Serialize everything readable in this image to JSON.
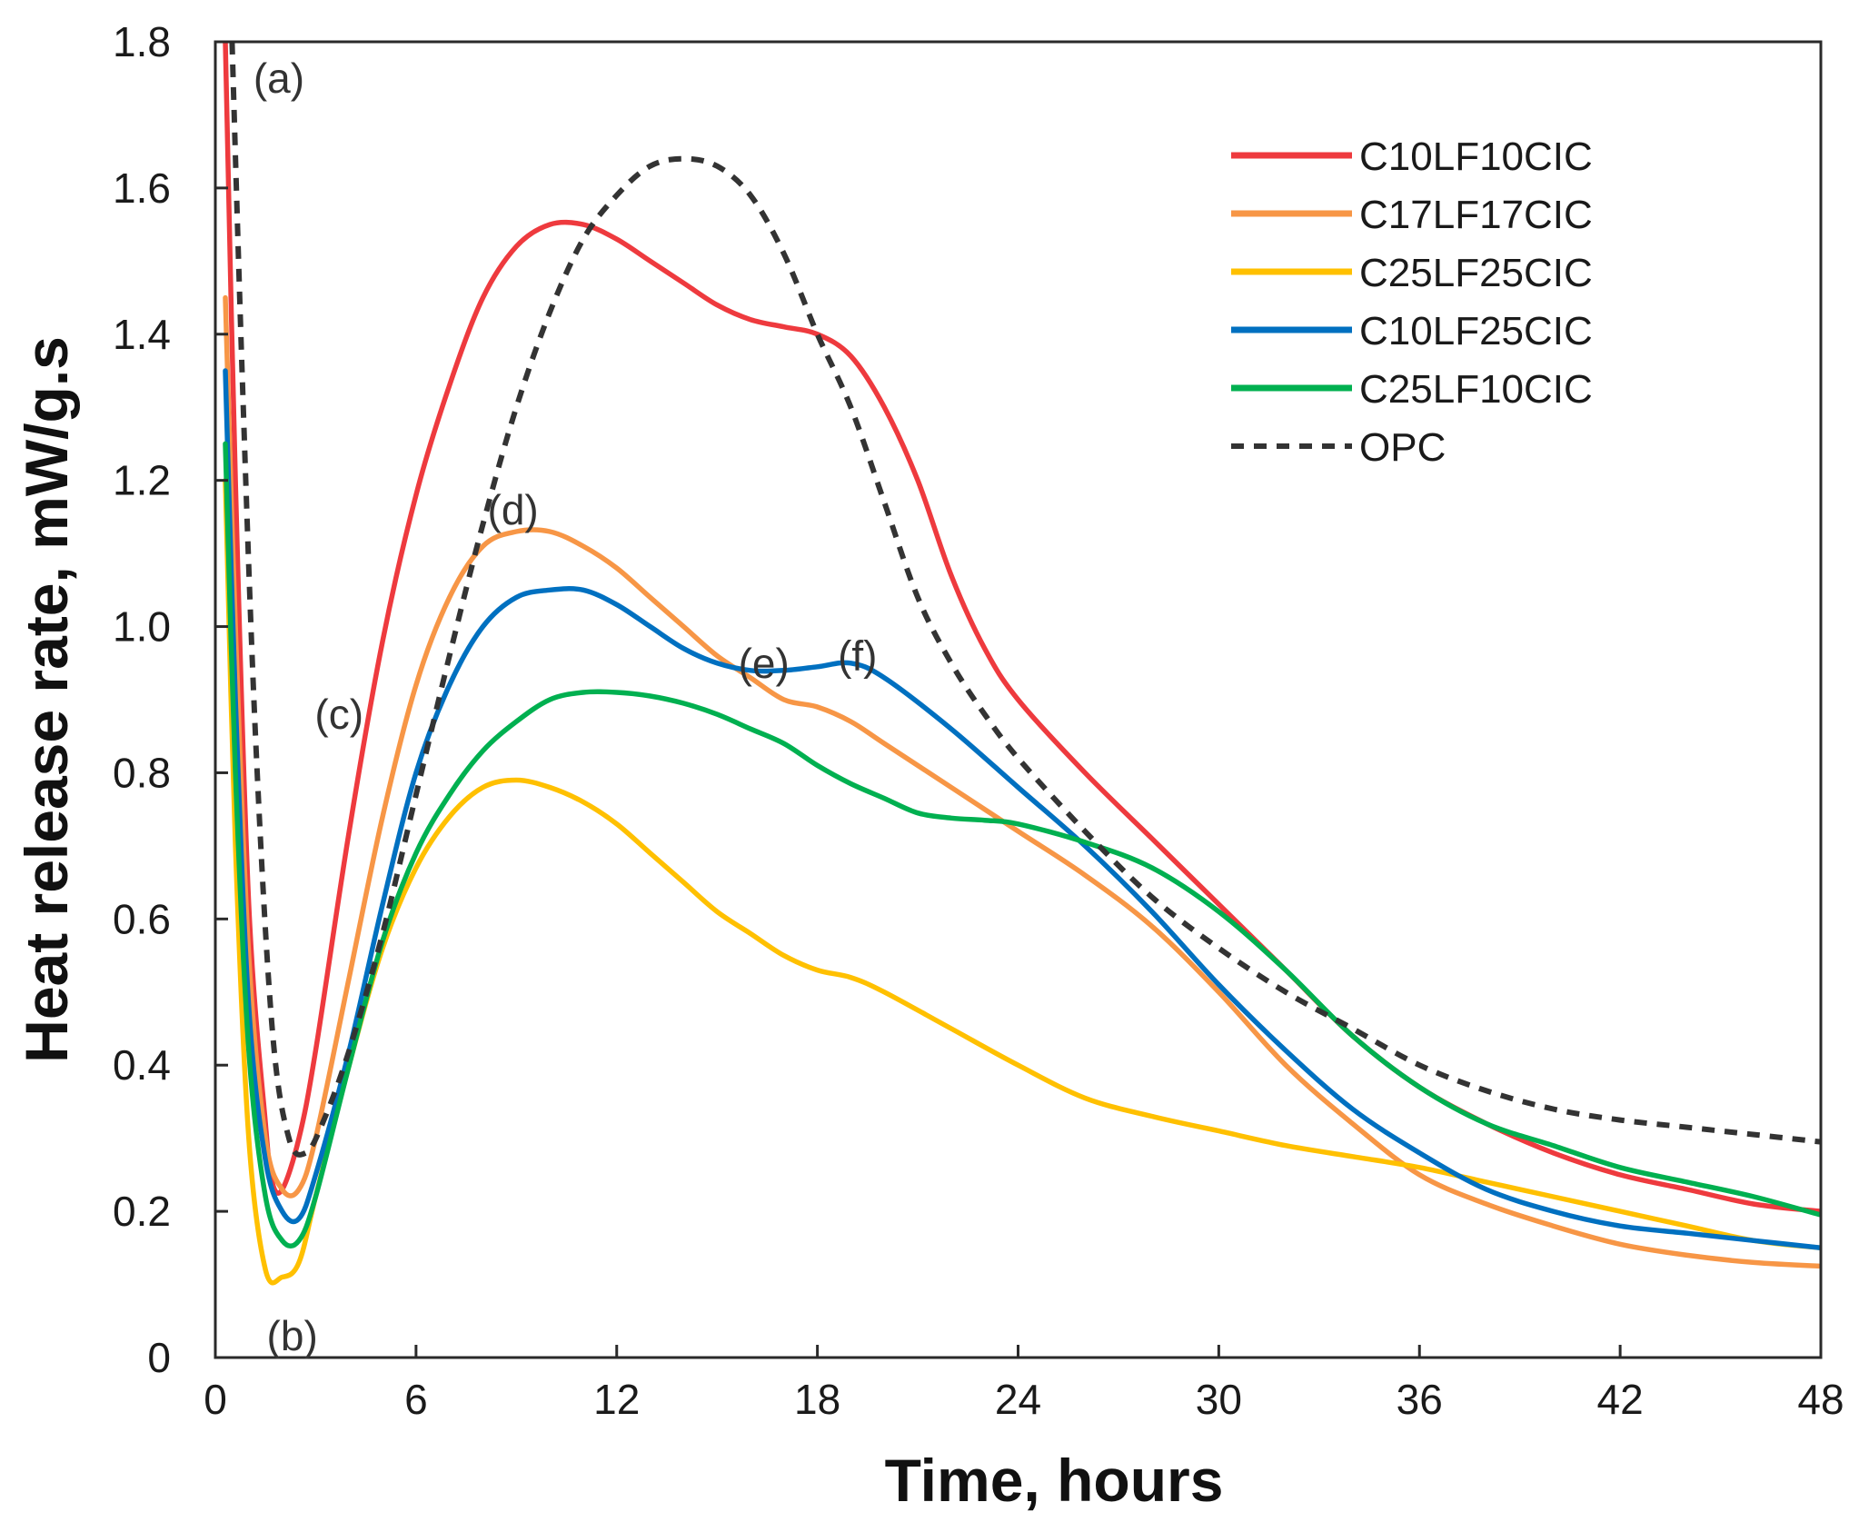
{
  "chart_data": {
    "type": "line",
    "title": "",
    "xlabel": "Time, hours",
    "ylabel": "Heat release rate, mW/g.s",
    "xlim": [
      0,
      48
    ],
    "ylim": [
      0,
      1.8
    ],
    "xticks": [
      0,
      6,
      12,
      18,
      24,
      30,
      36,
      42,
      48
    ],
    "yticks": [
      0,
      0.2,
      0.4,
      0.6,
      0.8,
      1.0,
      1.2,
      1.4,
      1.6,
      1.8
    ],
    "xtick_labels": [
      "0",
      "6",
      "12",
      "18",
      "24",
      "30",
      "36",
      "42",
      "48"
    ],
    "ytick_labels": [
      "0",
      "0.2",
      "0.4",
      "0.6",
      "0.8",
      "1.0",
      "1.2",
      "1.4",
      "1.6",
      "1.8"
    ],
    "grid": false,
    "legend_position": "top-right",
    "series": [
      {
        "name": "C10LF10CIC",
        "color": "#ee3a3e",
        "dash": false,
        "points": [
          [
            0.3,
            1.8
          ],
          [
            0.6,
            1.2
          ],
          [
            1.0,
            0.62
          ],
          [
            1.5,
            0.32
          ],
          [
            1.7,
            0.24
          ],
          [
            2.0,
            0.23
          ],
          [
            2.5,
            0.3
          ],
          [
            3.0,
            0.42
          ],
          [
            4.0,
            0.72
          ],
          [
            5.0,
            0.98
          ],
          [
            6.0,
            1.18
          ],
          [
            7.0,
            1.33
          ],
          [
            8.0,
            1.45
          ],
          [
            9.0,
            1.52
          ],
          [
            10.0,
            1.55
          ],
          [
            11.0,
            1.55
          ],
          [
            12.0,
            1.53
          ],
          [
            13.0,
            1.5
          ],
          [
            14.0,
            1.47
          ],
          [
            15.0,
            1.44
          ],
          [
            16.0,
            1.42
          ],
          [
            17.0,
            1.41
          ],
          [
            18.0,
            1.4
          ],
          [
            19.0,
            1.37
          ],
          [
            20.0,
            1.3
          ],
          [
            21.0,
            1.2
          ],
          [
            22.0,
            1.07
          ],
          [
            23.0,
            0.97
          ],
          [
            24.0,
            0.9
          ],
          [
            26.0,
            0.8
          ],
          [
            28.0,
            0.71
          ],
          [
            30.0,
            0.62
          ],
          [
            32.0,
            0.53
          ],
          [
            34.0,
            0.44
          ],
          [
            36.0,
            0.37
          ],
          [
            38.0,
            0.32
          ],
          [
            40.0,
            0.28
          ],
          [
            42.0,
            0.25
          ],
          [
            44.0,
            0.23
          ],
          [
            46.0,
            0.21
          ],
          [
            48.0,
            0.2
          ]
        ]
      },
      {
        "name": "C17LF17CIC",
        "color": "#f79646",
        "dash": false,
        "points": [
          [
            0.3,
            1.45
          ],
          [
            0.6,
            1.0
          ],
          [
            1.0,
            0.55
          ],
          [
            1.5,
            0.3
          ],
          [
            2.0,
            0.23
          ],
          [
            2.5,
            0.23
          ],
          [
            3.0,
            0.3
          ],
          [
            4.0,
            0.52
          ],
          [
            5.0,
            0.74
          ],
          [
            6.0,
            0.92
          ],
          [
            7.0,
            1.04
          ],
          [
            8.0,
            1.11
          ],
          [
            9.0,
            1.13
          ],
          [
            10.0,
            1.13
          ],
          [
            11.0,
            1.11
          ],
          [
            12.0,
            1.08
          ],
          [
            13.0,
            1.04
          ],
          [
            14.0,
            1.0
          ],
          [
            15.0,
            0.96
          ],
          [
            16.0,
            0.93
          ],
          [
            17.0,
            0.9
          ],
          [
            18.0,
            0.89
          ],
          [
            19.0,
            0.87
          ],
          [
            20.0,
            0.84
          ],
          [
            22.0,
            0.78
          ],
          [
            24.0,
            0.72
          ],
          [
            26.0,
            0.66
          ],
          [
            28.0,
            0.59
          ],
          [
            30.0,
            0.5
          ],
          [
            32.0,
            0.4
          ],
          [
            34.0,
            0.32
          ],
          [
            36.0,
            0.25
          ],
          [
            38.0,
            0.21
          ],
          [
            40.0,
            0.18
          ],
          [
            42.0,
            0.155
          ],
          [
            44.0,
            0.14
          ],
          [
            46.0,
            0.13
          ],
          [
            48.0,
            0.125
          ]
        ]
      },
      {
        "name": "C25LF25CIC",
        "color": "#ffc000",
        "dash": false,
        "points": [
          [
            0.3,
            1.2
          ],
          [
            0.6,
            0.7
          ],
          [
            1.0,
            0.3
          ],
          [
            1.5,
            0.12
          ],
          [
            2.0,
            0.11
          ],
          [
            2.5,
            0.13
          ],
          [
            3.0,
            0.22
          ],
          [
            4.0,
            0.4
          ],
          [
            5.0,
            0.56
          ],
          [
            6.0,
            0.67
          ],
          [
            7.0,
            0.74
          ],
          [
            8.0,
            0.78
          ],
          [
            9.0,
            0.79
          ],
          [
            10.0,
            0.78
          ],
          [
            11.0,
            0.76
          ],
          [
            12.0,
            0.73
          ],
          [
            13.0,
            0.69
          ],
          [
            14.0,
            0.65
          ],
          [
            15.0,
            0.61
          ],
          [
            16.0,
            0.58
          ],
          [
            17.0,
            0.55
          ],
          [
            18.0,
            0.53
          ],
          [
            19.0,
            0.52
          ],
          [
            20.0,
            0.5
          ],
          [
            22.0,
            0.45
          ],
          [
            24.0,
            0.4
          ],
          [
            26.0,
            0.355
          ],
          [
            28.0,
            0.33
          ],
          [
            30.0,
            0.31
          ],
          [
            32.0,
            0.29
          ],
          [
            34.0,
            0.275
          ],
          [
            36.0,
            0.26
          ],
          [
            38.0,
            0.24
          ],
          [
            40.0,
            0.22
          ],
          [
            42.0,
            0.2
          ],
          [
            44.0,
            0.18
          ],
          [
            46.0,
            0.16
          ],
          [
            48.0,
            0.15
          ]
        ]
      },
      {
        "name": "C10LF25CIC",
        "color": "#0070c0",
        "dash": false,
        "points": [
          [
            0.3,
            1.35
          ],
          [
            0.6,
            0.9
          ],
          [
            1.0,
            0.48
          ],
          [
            1.5,
            0.27
          ],
          [
            2.0,
            0.2
          ],
          [
            2.5,
            0.19
          ],
          [
            3.0,
            0.25
          ],
          [
            4.0,
            0.42
          ],
          [
            5.0,
            0.62
          ],
          [
            6.0,
            0.8
          ],
          [
            7.0,
            0.92
          ],
          [
            8.0,
            1.0
          ],
          [
            9.0,
            1.04
          ],
          [
            10.0,
            1.05
          ],
          [
            11.0,
            1.05
          ],
          [
            12.0,
            1.03
          ],
          [
            13.0,
            1.0
          ],
          [
            14.0,
            0.97
          ],
          [
            15.0,
            0.95
          ],
          [
            16.0,
            0.94
          ],
          [
            17.0,
            0.94
          ],
          [
            18.0,
            0.945
          ],
          [
            19.0,
            0.95
          ],
          [
            20.0,
            0.93
          ],
          [
            22.0,
            0.86
          ],
          [
            24.0,
            0.78
          ],
          [
            26.0,
            0.7
          ],
          [
            28.0,
            0.61
          ],
          [
            30.0,
            0.51
          ],
          [
            32.0,
            0.42
          ],
          [
            34.0,
            0.34
          ],
          [
            36.0,
            0.28
          ],
          [
            38.0,
            0.23
          ],
          [
            40.0,
            0.2
          ],
          [
            42.0,
            0.18
          ],
          [
            44.0,
            0.17
          ],
          [
            46.0,
            0.16
          ],
          [
            48.0,
            0.15
          ]
        ]
      },
      {
        "name": "C25LF10CIC",
        "color": "#00b050",
        "dash": false,
        "points": [
          [
            0.3,
            1.25
          ],
          [
            0.6,
            0.8
          ],
          [
            1.0,
            0.42
          ],
          [
            1.5,
            0.22
          ],
          [
            2.0,
            0.16
          ],
          [
            2.5,
            0.16
          ],
          [
            3.0,
            0.22
          ],
          [
            4.0,
            0.4
          ],
          [
            5.0,
            0.57
          ],
          [
            6.0,
            0.69
          ],
          [
            7.0,
            0.77
          ],
          [
            8.0,
            0.83
          ],
          [
            9.0,
            0.87
          ],
          [
            10.0,
            0.9
          ],
          [
            11.0,
            0.91
          ],
          [
            12.0,
            0.91
          ],
          [
            13.0,
            0.905
          ],
          [
            14.0,
            0.895
          ],
          [
            15.0,
            0.88
          ],
          [
            16.0,
            0.86
          ],
          [
            17.0,
            0.84
          ],
          [
            18.0,
            0.81
          ],
          [
            19.0,
            0.785
          ],
          [
            20.0,
            0.765
          ],
          [
            21.0,
            0.745
          ],
          [
            22.0,
            0.738
          ],
          [
            23.0,
            0.735
          ],
          [
            24.0,
            0.73
          ],
          [
            26.0,
            0.705
          ],
          [
            28.0,
            0.67
          ],
          [
            30.0,
            0.61
          ],
          [
            32.0,
            0.53
          ],
          [
            34.0,
            0.44
          ],
          [
            36.0,
            0.37
          ],
          [
            38.0,
            0.32
          ],
          [
            40.0,
            0.29
          ],
          [
            42.0,
            0.26
          ],
          [
            44.0,
            0.24
          ],
          [
            46.0,
            0.22
          ],
          [
            48.0,
            0.195
          ]
        ]
      },
      {
        "name": "OPC",
        "color": "#333333",
        "dash": true,
        "points": [
          [
            0.5,
            1.8
          ],
          [
            0.8,
            1.35
          ],
          [
            1.2,
            0.85
          ],
          [
            1.7,
            0.45
          ],
          [
            2.2,
            0.3
          ],
          [
            2.7,
            0.28
          ],
          [
            3.2,
            0.32
          ],
          [
            4.0,
            0.42
          ],
          [
            5.0,
            0.58
          ],
          [
            6.0,
            0.77
          ],
          [
            7.0,
            0.96
          ],
          [
            8.0,
            1.14
          ],
          [
            9.0,
            1.3
          ],
          [
            10.0,
            1.43
          ],
          [
            11.0,
            1.53
          ],
          [
            12.0,
            1.59
          ],
          [
            13.0,
            1.63
          ],
          [
            14.0,
            1.64
          ],
          [
            15.0,
            1.63
          ],
          [
            16.0,
            1.59
          ],
          [
            17.0,
            1.51
          ],
          [
            18.0,
            1.4
          ],
          [
            19.0,
            1.3
          ],
          [
            20.0,
            1.17
          ],
          [
            21.0,
            1.04
          ],
          [
            22.0,
            0.95
          ],
          [
            23.0,
            0.88
          ],
          [
            24.0,
            0.82
          ],
          [
            26.0,
            0.72
          ],
          [
            28.0,
            0.63
          ],
          [
            30.0,
            0.56
          ],
          [
            32.0,
            0.5
          ],
          [
            34.0,
            0.45
          ],
          [
            36.0,
            0.4
          ],
          [
            38.0,
            0.365
          ],
          [
            40.0,
            0.34
          ],
          [
            42.0,
            0.325
          ],
          [
            44.0,
            0.315
          ],
          [
            46.0,
            0.305
          ],
          [
            48.0,
            0.295
          ]
        ]
      }
    ],
    "annotations": [
      {
        "text": "(a)",
        "x": 1.9,
        "y": 1.75
      },
      {
        "text": "(b)",
        "x": 2.3,
        "y": 0.03
      },
      {
        "text": "(c)",
        "x": 3.7,
        "y": 0.88
      },
      {
        "text": "(d)",
        "x": 8.9,
        "y": 1.16
      },
      {
        "text": "(e)",
        "x": 16.4,
        "y": 0.95
      },
      {
        "text": "(f)",
        "x": 19.2,
        "y": 0.96
      }
    ]
  }
}
